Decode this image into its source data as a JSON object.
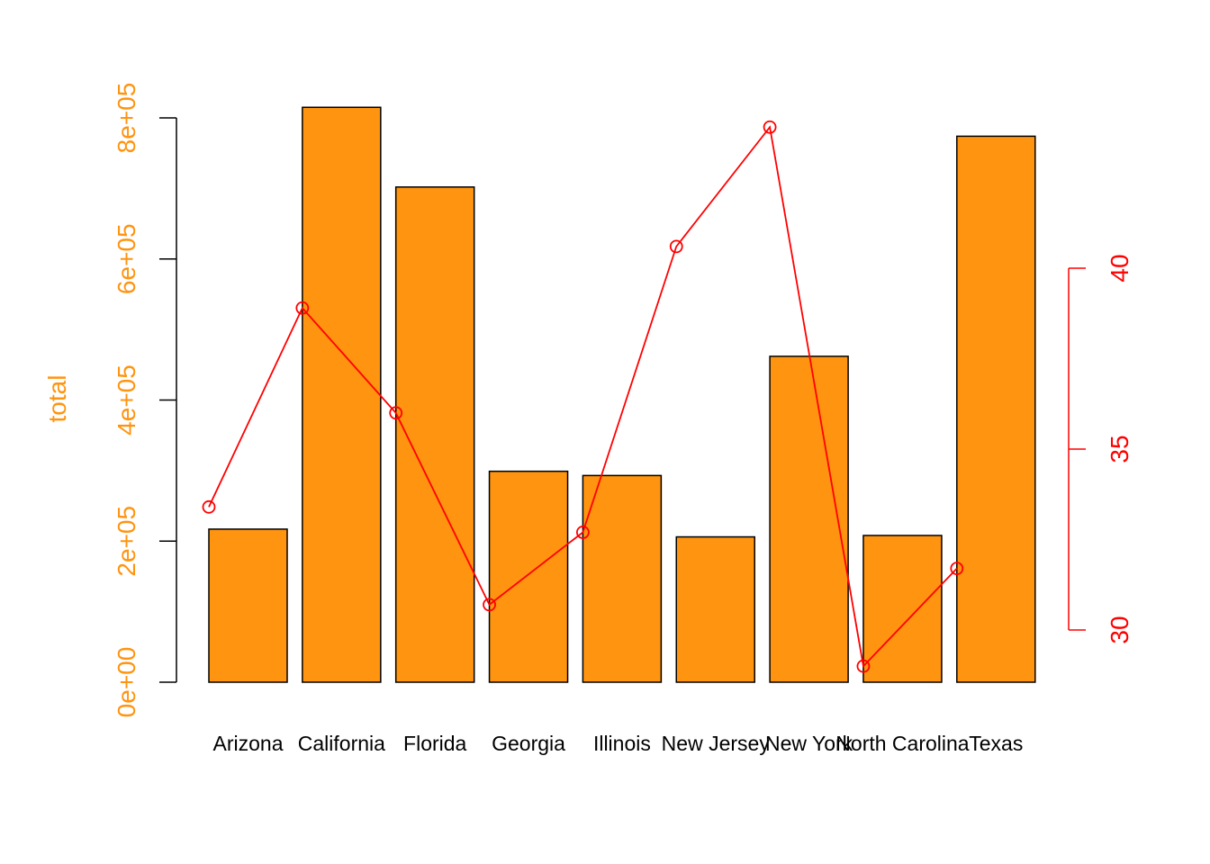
{
  "chart_data": {
    "type": "bar",
    "title": "",
    "categories": [
      "Arizona",
      "California",
      "Florida",
      "Georgia",
      "Illinois",
      "New Jersey",
      "New York",
      "North Carolina",
      "Texas"
    ],
    "bar_series": {
      "values": [
        217000,
        815000,
        702000,
        299000,
        293000,
        206000,
        462000,
        208000,
        774000
      ],
      "color": "#FF9410",
      "border_color": "#000000"
    },
    "line_series": {
      "type": "line",
      "values": [
        33.4,
        38.9,
        36.0,
        30.7,
        32.7,
        40.6,
        43.9,
        29.0,
        31.7
      ],
      "color": "#FF0000",
      "marker": "open-circle"
    },
    "y_left": {
      "label": "total",
      "ticks": [
        0,
        200000,
        400000,
        600000,
        800000
      ],
      "tick_labels": [
        "0e+00",
        "2e+05",
        "4e+05",
        "6e+05",
        "8e+05"
      ],
      "range": [
        0,
        830000
      ],
      "color": "#FF9410"
    },
    "y_right": {
      "label": "",
      "ticks": [
        30,
        35,
        40
      ],
      "tick_labels": [
        "30",
        "35",
        "40"
      ],
      "range": [
        28.53,
        45.0
      ],
      "color": "#FF0000"
    },
    "grid": false,
    "legend": "none"
  }
}
